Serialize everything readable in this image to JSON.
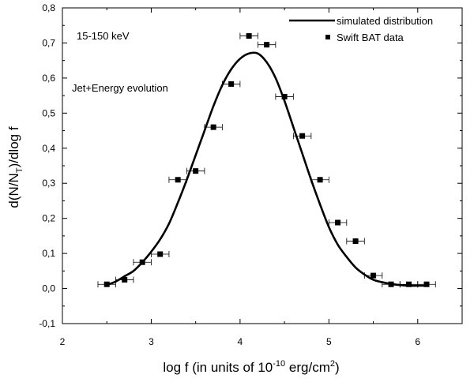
{
  "chart_data": {
    "type": "scatter",
    "xlabel_main": "log f (in units of 10",
    "xlabel_exp": "-10",
    "xlabel_unit": " erg/cm",
    "xlabel_unit_exp": "2",
    "xlabel_close": ")",
    "ylabel_main": "d(N/N",
    "ylabel_sub": "T",
    "ylabel_rest": ")/dlog f",
    "xlim": [
      2,
      6.5
    ],
    "ylim": [
      -0.1,
      0.8
    ],
    "x_ticks": [
      2,
      3,
      4,
      5,
      6
    ],
    "x_tick_labels": [
      "2",
      "3",
      "4",
      "5",
      "6"
    ],
    "y_ticks": [
      -0.1,
      0.0,
      0.1,
      0.2,
      0.3,
      0.4,
      0.5,
      0.6,
      0.7,
      0.8
    ],
    "y_tick_labels": [
      "-0,1",
      "0,0",
      "0,1",
      "0,2",
      "0,3",
      "0,4",
      "0,5",
      "0,6",
      "0,7",
      "0,8"
    ],
    "grid": false,
    "legend_position": "top-right",
    "annotations": [
      "15-150 keV",
      "Jet+Energy evolution"
    ],
    "series": [
      {
        "name": "simulated distribution",
        "kind": "line",
        "color": "#000000",
        "x": [
          2.5,
          2.6,
          2.7,
          2.8,
          2.9,
          3.0,
          3.1,
          3.2,
          3.3,
          3.4,
          3.5,
          3.6,
          3.7,
          3.8,
          3.9,
          4.0,
          4.1,
          4.2,
          4.3,
          4.4,
          4.5,
          4.6,
          4.7,
          4.8,
          4.9,
          5.0,
          5.1,
          5.2,
          5.3,
          5.4,
          5.5,
          5.6,
          5.7,
          5.8,
          5.9,
          6.0,
          6.1
        ],
        "y": [
          0.01,
          0.02,
          0.035,
          0.05,
          0.075,
          0.105,
          0.14,
          0.185,
          0.245,
          0.31,
          0.38,
          0.45,
          0.52,
          0.58,
          0.625,
          0.655,
          0.67,
          0.67,
          0.645,
          0.6,
          0.535,
          0.46,
          0.385,
          0.31,
          0.24,
          0.175,
          0.125,
          0.09,
          0.06,
          0.04,
          0.025,
          0.018,
          0.013,
          0.01,
          0.008,
          0.008,
          0.008
        ]
      },
      {
        "name": "Swift BAT data",
        "kind": "points",
        "color": "#000000",
        "x": [
          2.5,
          2.7,
          2.9,
          3.1,
          3.3,
          3.5,
          3.7,
          3.9,
          4.1,
          4.3,
          4.5,
          4.7,
          4.9,
          5.1,
          5.3,
          5.5,
          5.7,
          5.9,
          6.1
        ],
        "y": [
          0.012,
          0.025,
          0.075,
          0.098,
          0.31,
          0.335,
          0.46,
          0.583,
          0.72,
          0.695,
          0.547,
          0.435,
          0.31,
          0.188,
          0.135,
          0.037,
          0.012,
          0.012,
          0.012
        ],
        "x_err": 0.1
      }
    ]
  }
}
